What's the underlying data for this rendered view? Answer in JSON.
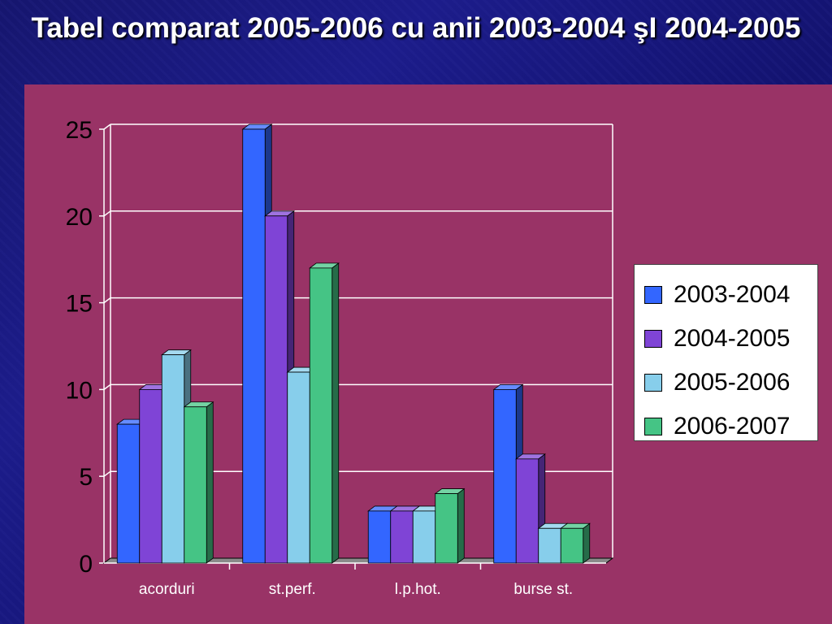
{
  "slide": {
    "title": "Tabel comparat 2005-2006 cu anii 2003-2004 şI 2004-2005"
  },
  "colors": {
    "page_background": "#16166e",
    "chart_panel": "#993366",
    "title_text": "#ffffff"
  },
  "chart_data": {
    "type": "bar",
    "style": "3d-clustered-column",
    "title": "",
    "xlabel": "",
    "ylabel": "",
    "categories": [
      "acorduri",
      "st.perf.",
      "l.p.hot.",
      "burse st."
    ],
    "ylim": [
      0,
      25
    ],
    "yticks": [
      0,
      5,
      10,
      15,
      20,
      25
    ],
    "grid": true,
    "legend_position": "right",
    "series": [
      {
        "name": "2003-2004",
        "color": "#3366ff",
        "values": [
          8,
          25,
          3,
          10
        ]
      },
      {
        "name": "2004-2005",
        "color": "#7f44d6",
        "values": [
          10,
          20,
          3,
          6
        ]
      },
      {
        "name": "2005-2006",
        "color": "#87ceeb",
        "values": [
          12,
          11,
          3,
          2
        ]
      },
      {
        "name": "2006-2007",
        "color": "#45c485",
        "values": [
          9,
          17,
          4,
          2
        ]
      }
    ]
  }
}
